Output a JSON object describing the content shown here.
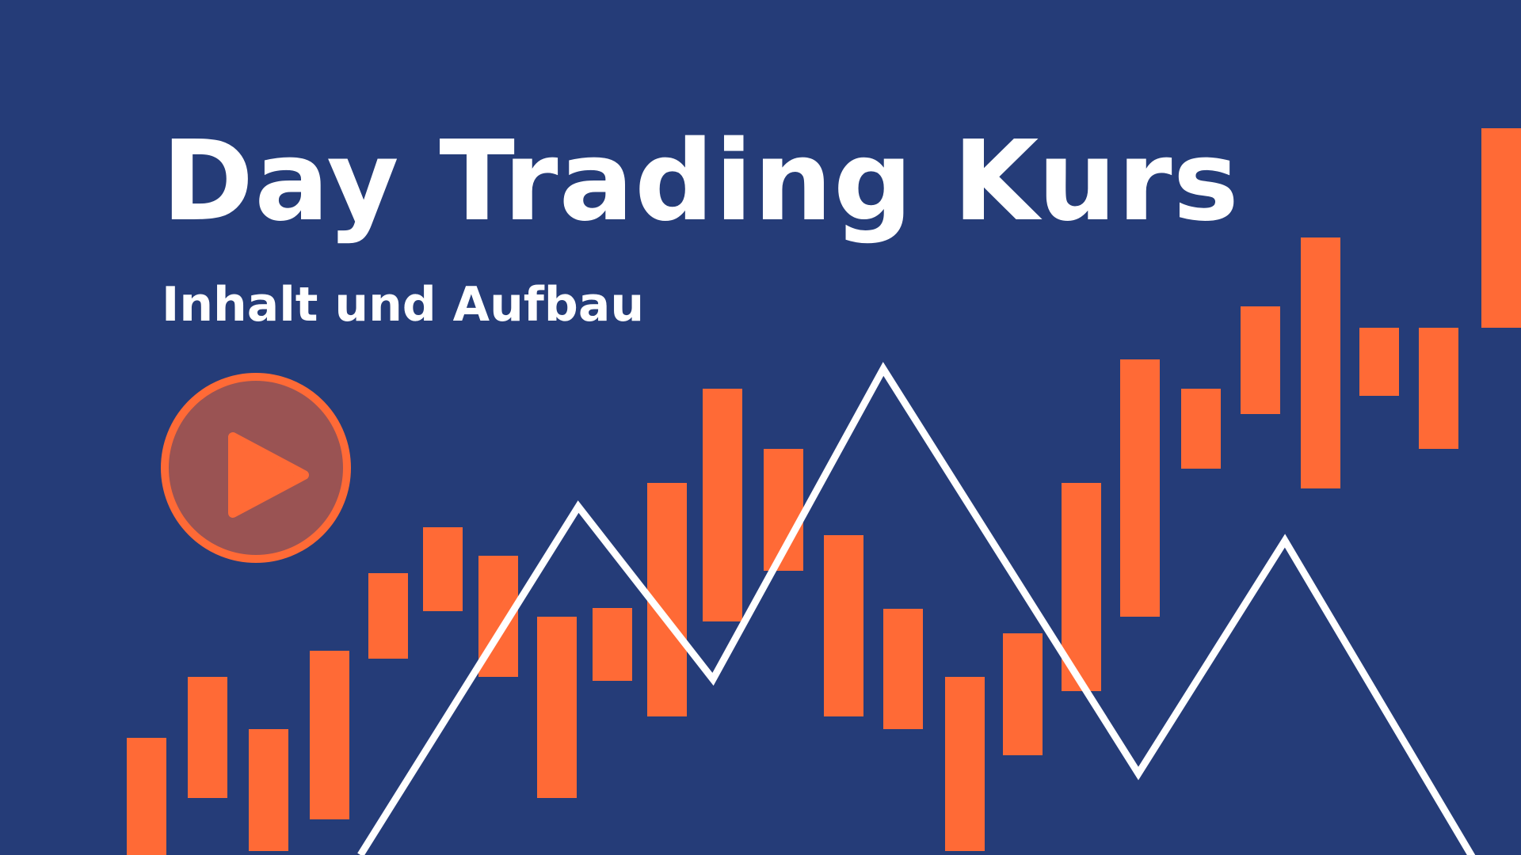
{
  "header": {
    "title": "Day Trading Kurs",
    "subtitle": "Inhalt und Aufbau"
  },
  "play_button": {
    "icon": "play-icon"
  },
  "colors": {
    "background": "#253c78",
    "candle": "#ff6a36",
    "line": "#ffffff",
    "play_fill": "#9a5353",
    "play_ring": "#ff6a36",
    "text": "#ffffff"
  }
}
